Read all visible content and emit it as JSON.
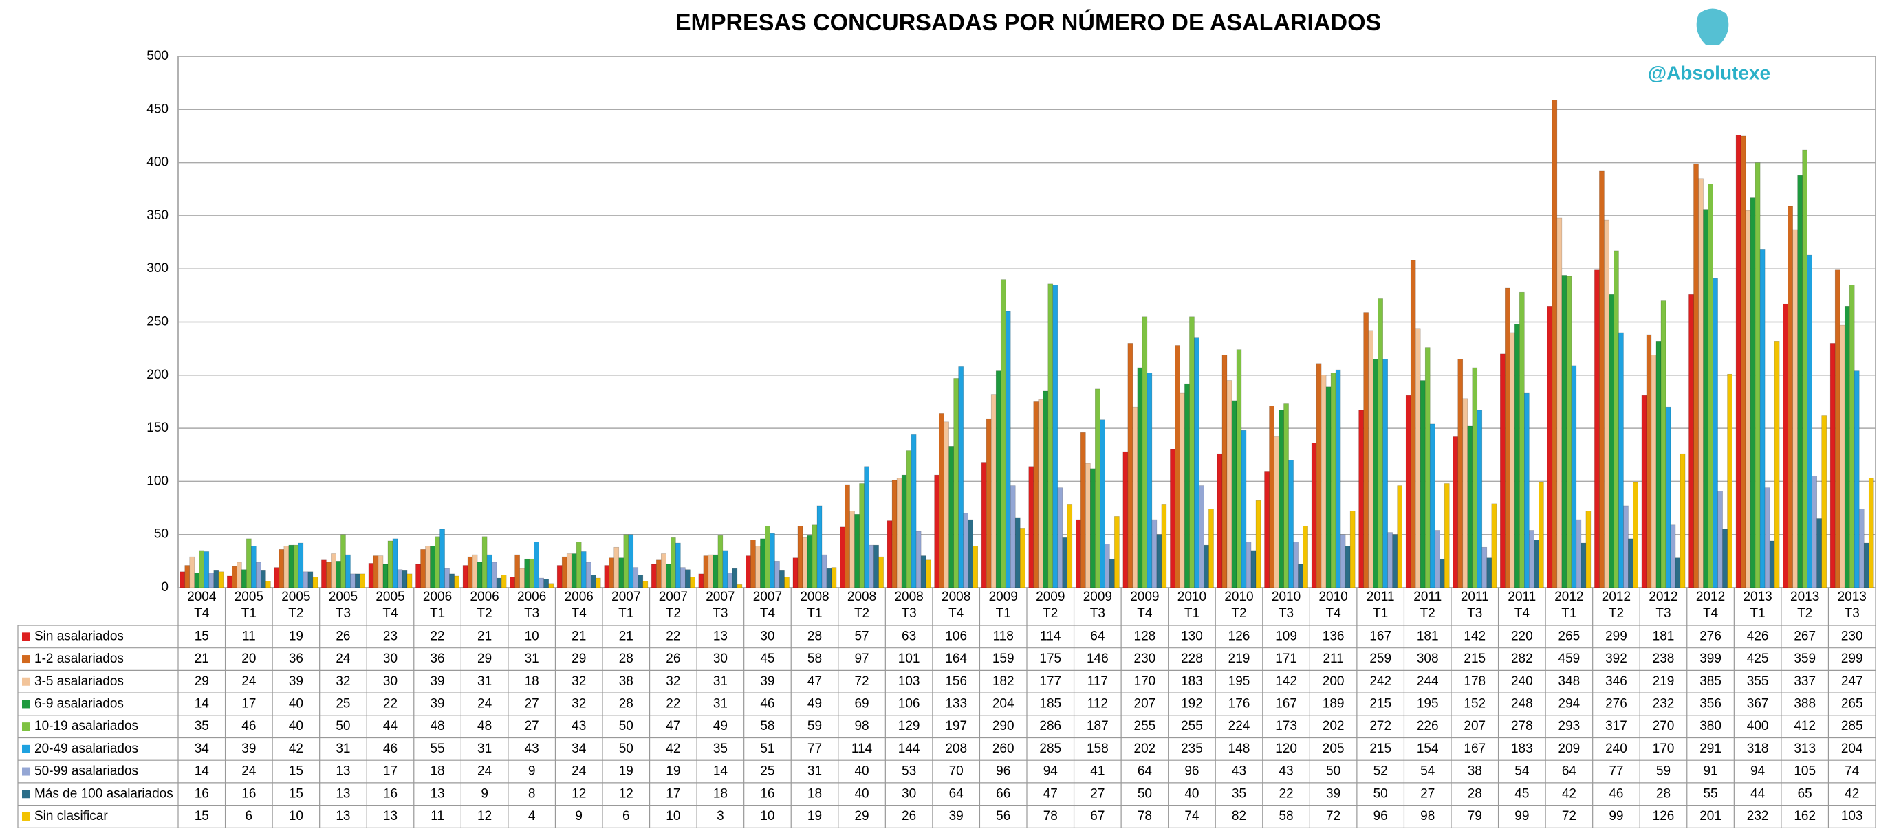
{
  "chart_data": {
    "type": "bar",
    "title": "EMPRESAS CONCURSADAS POR NÚMERO DE ASALARIADOS",
    "watermark": "@Absolutexe",
    "categories": [
      "2004 T4",
      "2005 T1",
      "2005 T2",
      "2005 T3",
      "2005 T4",
      "2006 T1",
      "2006 T2",
      "2006 T3",
      "2006 T4",
      "2007 T1",
      "2007 T2",
      "2007 T3",
      "2007 T4",
      "2008 T1",
      "2008 T2",
      "2008 T3",
      "2008 T4",
      "2009 T1",
      "2009 T2",
      "2009 T3",
      "2009 T4",
      "2010 T1",
      "2010 T2",
      "2010 T3",
      "2010 T4",
      "2011 T1",
      "2011 T2",
      "2011 T3",
      "2011 T4",
      "2012 T1",
      "2012 T2",
      "2012 T3",
      "2012 T4",
      "2013 T1",
      "2013 T2",
      "2013 T3"
    ],
    "series": [
      {
        "name": "Sin asalariados",
        "color": "#dd1f1f",
        "values": [
          15,
          11,
          19,
          26,
          23,
          22,
          21,
          10,
          21,
          21,
          22,
          13,
          30,
          28,
          57,
          63,
          106,
          118,
          114,
          64,
          128,
          130,
          126,
          109,
          136,
          167,
          181,
          142,
          220,
          265,
          299,
          181,
          276,
          426,
          267,
          230
        ]
      },
      {
        "name": "1-2 asalariados",
        "color": "#d2691e",
        "values": [
          21,
          20,
          36,
          24,
          30,
          36,
          29,
          31,
          29,
          28,
          26,
          30,
          45,
          58,
          97,
          101,
          164,
          159,
          175,
          146,
          230,
          228,
          219,
          171,
          211,
          259,
          308,
          215,
          282,
          459,
          392,
          238,
          399,
          425,
          359,
          299
        ]
      },
      {
        "name": "3-5 asalariados",
        "color": "#f2c49a",
        "values": [
          29,
          24,
          39,
          32,
          30,
          39,
          31,
          18,
          32,
          38,
          32,
          31,
          39,
          47,
          72,
          103,
          156,
          182,
          177,
          117,
          170,
          183,
          195,
          142,
          200,
          242,
          244,
          178,
          240,
          348,
          346,
          219,
          385,
          355,
          337,
          247
        ]
      },
      {
        "name": "6-9 asalariados",
        "color": "#1e9a3e",
        "values": [
          14,
          17,
          40,
          25,
          22,
          39,
          24,
          27,
          32,
          28,
          22,
          31,
          46,
          49,
          69,
          106,
          133,
          204,
          185,
          112,
          207,
          192,
          176,
          167,
          189,
          215,
          195,
          152,
          248,
          294,
          276,
          232,
          356,
          367,
          388,
          265
        ]
      },
      {
        "name": "10-19 asalariados",
        "color": "#7ec242",
        "values": [
          35,
          46,
          40,
          50,
          44,
          48,
          48,
          27,
          43,
          50,
          47,
          49,
          58,
          59,
          98,
          129,
          197,
          290,
          286,
          187,
          255,
          255,
          224,
          173,
          202,
          272,
          226,
          207,
          278,
          293,
          317,
          270,
          380,
          400,
          412,
          285
        ]
      },
      {
        "name": "20-49 asalariados",
        "color": "#1fa2e0",
        "values": [
          34,
          39,
          42,
          31,
          46,
          55,
          31,
          43,
          34,
          50,
          42,
          35,
          51,
          77,
          114,
          144,
          208,
          260,
          285,
          158,
          202,
          235,
          148,
          120,
          205,
          215,
          154,
          167,
          183,
          209,
          240,
          170,
          291,
          318,
          313,
          204
        ]
      },
      {
        "name": "50-99 asalariados",
        "color": "#94a6d4",
        "values": [
          14,
          24,
          15,
          13,
          17,
          18,
          24,
          9,
          24,
          19,
          19,
          14,
          25,
          31,
          40,
          53,
          70,
          96,
          94,
          41,
          64,
          96,
          43,
          43,
          50,
          52,
          54,
          38,
          54,
          64,
          77,
          59,
          91,
          94,
          105,
          74
        ]
      },
      {
        "name": "Más de 100 asalariados",
        "color": "#2b6d88",
        "values": [
          16,
          16,
          15,
          13,
          16,
          13,
          9,
          8,
          12,
          12,
          17,
          18,
          16,
          18,
          40,
          30,
          64,
          66,
          47,
          27,
          50,
          40,
          35,
          22,
          39,
          50,
          27,
          28,
          45,
          42,
          46,
          28,
          55,
          44,
          65,
          42
        ]
      },
      {
        "name": "Sin clasificar",
        "color": "#f2c200",
        "values": [
          15,
          6,
          10,
          13,
          13,
          11,
          12,
          4,
          9,
          6,
          10,
          3,
          10,
          19,
          29,
          26,
          39,
          56,
          78,
          67,
          78,
          74,
          82,
          58,
          72,
          96,
          98,
          79,
          99,
          72,
          99,
          126,
          201,
          232,
          162,
          103
        ]
      }
    ],
    "ylim": [
      0,
      500
    ],
    "yticks": [
      0,
      50,
      100,
      150,
      200,
      250,
      300,
      350,
      400,
      450,
      500
    ],
    "grid": true
  }
}
